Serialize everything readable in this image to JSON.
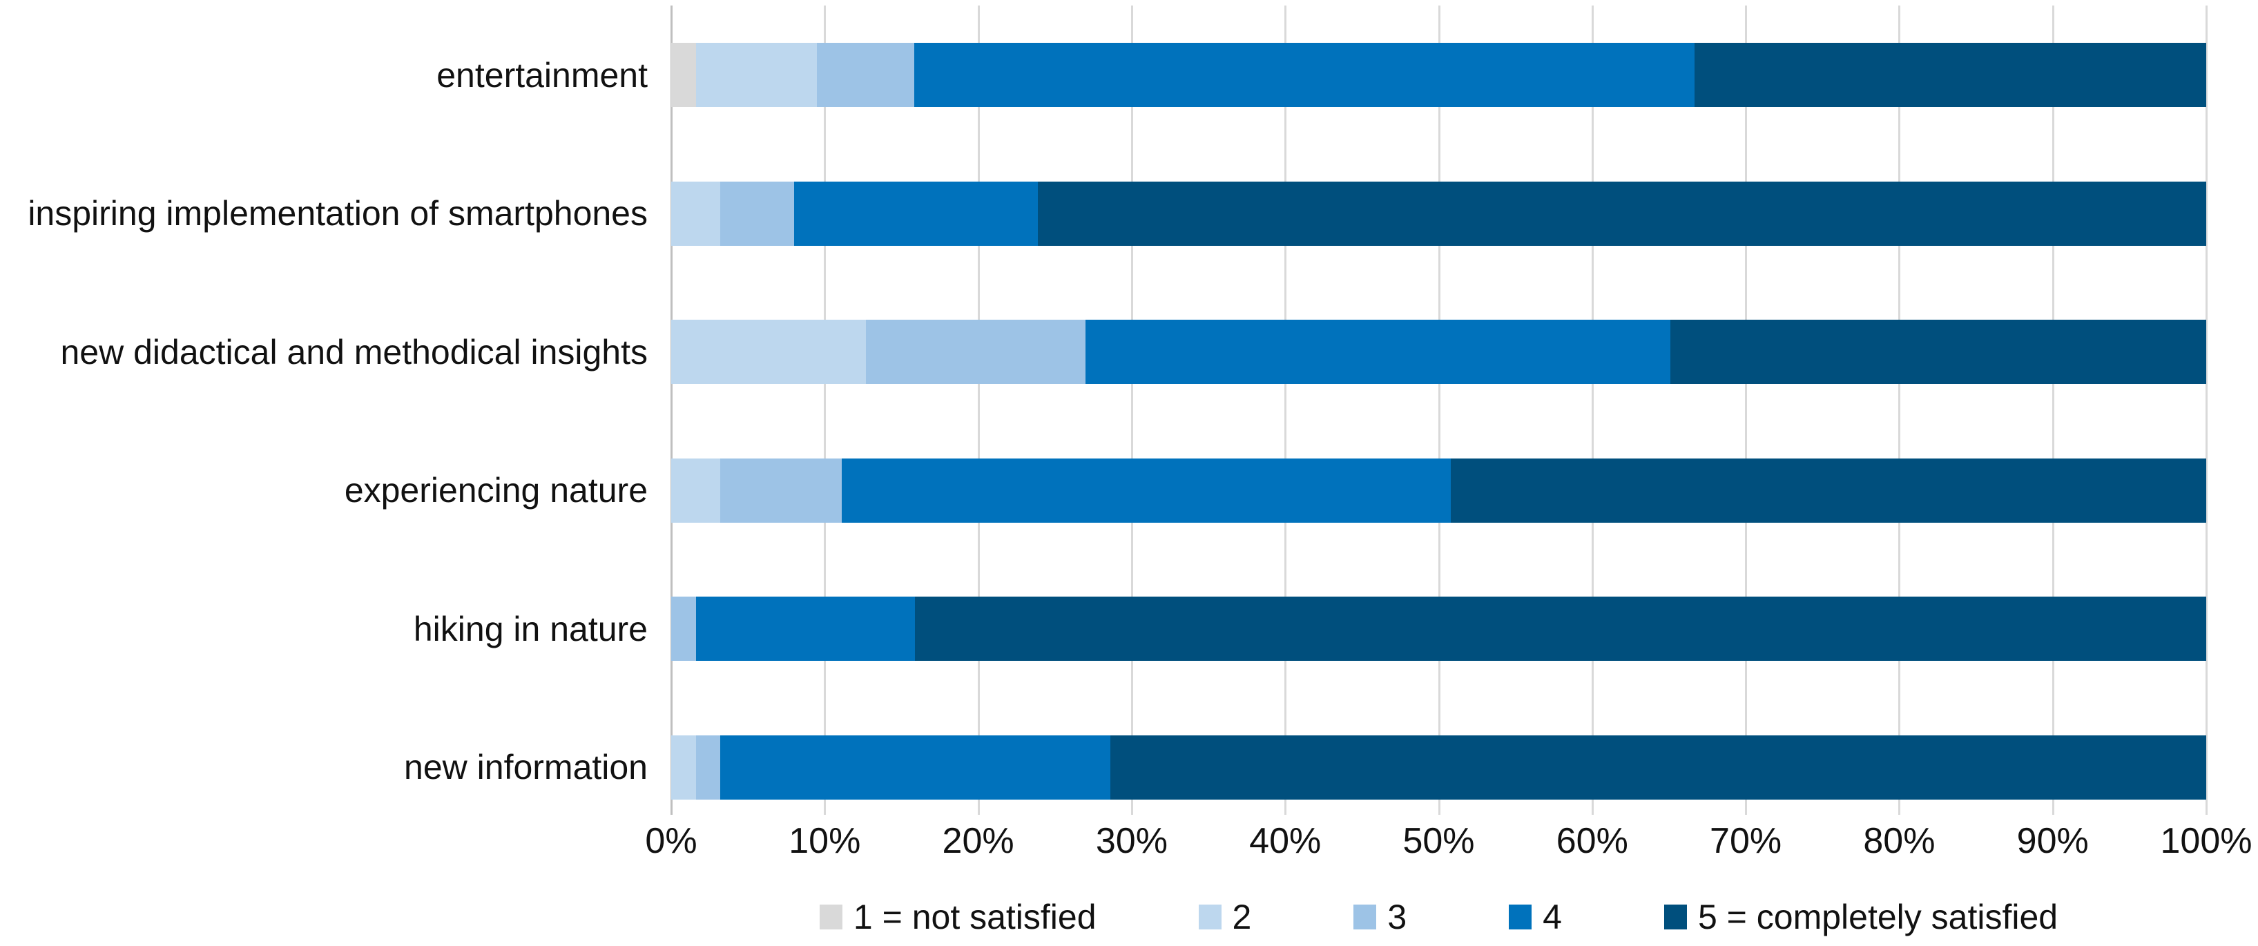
{
  "chart_data": {
    "type": "bar",
    "variant": "horizontal-stacked-100pct",
    "title": "",
    "xlabel": "",
    "ylabel": "",
    "x_axis": {
      "min": 0,
      "max": 100,
      "tick_step": 10,
      "ticks": [
        "0%",
        "10%",
        "20%",
        "30%",
        "40%",
        "50%",
        "60%",
        "70%",
        "80%",
        "90%",
        "100%"
      ],
      "grid": true
    },
    "categories": [
      "entertainment",
      "inspiring implementation of smartphones",
      "new didactical and methodical insights",
      "experiencing nature",
      "hiking in nature",
      "new information"
    ],
    "series": [
      {
        "name": "1 = not satisfied",
        "color": "#d9d9d9",
        "values_pct": [
          1.6,
          0.0,
          0.0,
          0.0,
          0.0,
          0.0
        ]
      },
      {
        "name": "2",
        "color": "#bdd7ee",
        "values_pct": [
          7.9,
          3.2,
          12.7,
          3.2,
          0.0,
          1.6
        ]
      },
      {
        "name": "3",
        "color": "#9dc3e6",
        "values_pct": [
          6.3,
          4.8,
          14.3,
          7.9,
          1.6,
          1.6
        ]
      },
      {
        "name": "4",
        "color": "#0072bc",
        "values_pct": [
          50.8,
          15.9,
          38.1,
          39.7,
          14.3,
          25.4
        ]
      },
      {
        "name": "5 = completely satisfied",
        "color": "#004f7d",
        "values_pct": [
          33.3,
          76.2,
          34.9,
          49.2,
          84.1,
          71.4
        ]
      }
    ],
    "legend_position": "bottom-center"
  },
  "style_colors": {
    "background": "#ffffff",
    "gridline": "#d9d9d9",
    "zero_line": "#bfbfbf",
    "text": "#111111"
  },
  "layout_counts": {
    "n_categories": 6,
    "n_series": 5,
    "n_gridlines": 11
  }
}
